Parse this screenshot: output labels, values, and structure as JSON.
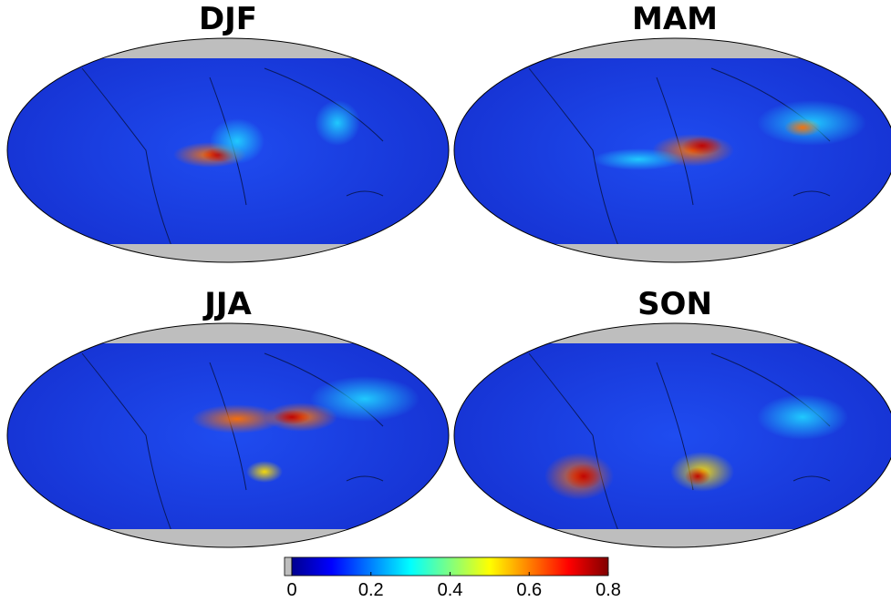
{
  "panels": [
    {
      "title": "DJF"
    },
    {
      "title": "MAM"
    },
    {
      "title": "JJA"
    },
    {
      "title": "SON"
    }
  ],
  "colorbar": {
    "lim": [
      0,
      0.8
    ],
    "ticks": [
      0,
      0.2,
      0.4,
      0.6,
      0.8
    ],
    "colors": [
      "#00008f",
      "#0000ff",
      "#0080ff",
      "#00ffff",
      "#80ff80",
      "#ffff00",
      "#ff8000",
      "#ff0000",
      "#800000"
    ]
  }
}
